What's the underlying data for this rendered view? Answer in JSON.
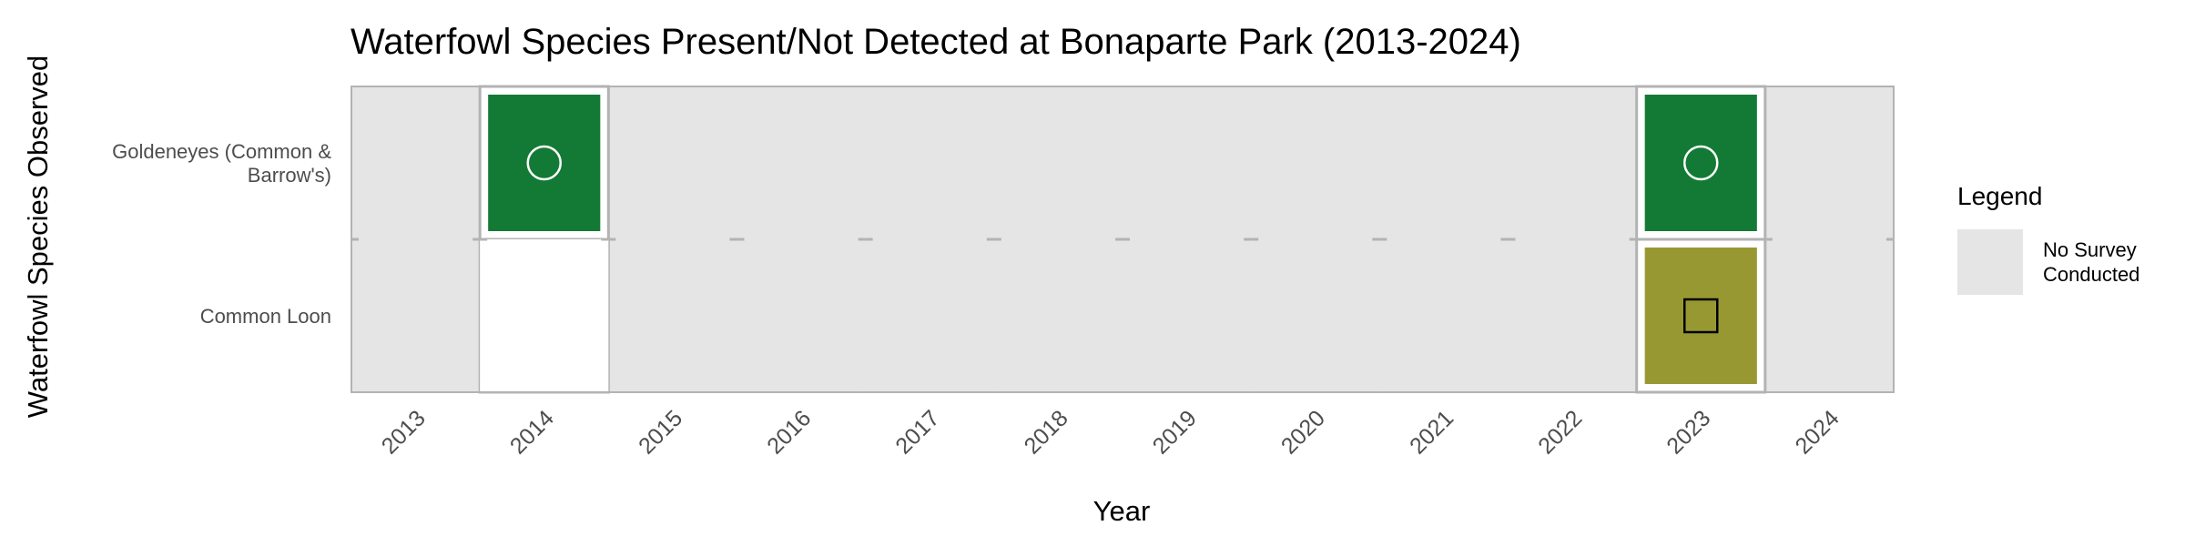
{
  "chart_data": {
    "type": "heatmap",
    "title": "Waterfowl Species Present/Not Detected at Bonaparte Park (2013-2024)",
    "xlabel": "Year",
    "ylabel": "Waterfowl Species Observed",
    "years": [
      "2013",
      "2014",
      "2015",
      "2016",
      "2017",
      "2018",
      "2019",
      "2020",
      "2021",
      "2022",
      "2023",
      "2024"
    ],
    "species": [
      {
        "label_lines": [
          "Goldeneyes (Common &",
          "Barrow's)"
        ],
        "status": [
          "no_survey",
          "present",
          "no_survey",
          "no_survey",
          "no_survey",
          "no_survey",
          "no_survey",
          "no_survey",
          "no_survey",
          "no_survey",
          "present",
          "no_survey"
        ]
      },
      {
        "label_lines": [
          "Common Loon"
        ],
        "status": [
          "no_survey",
          "not_detected",
          "no_survey",
          "no_survey",
          "no_survey",
          "no_survey",
          "no_survey",
          "no_survey",
          "no_survey",
          "no_survey",
          "present_alt",
          "no_survey"
        ]
      }
    ],
    "cell_styles": {
      "no_survey": {
        "fill": "#e5e5e5",
        "marker": "none"
      },
      "present": {
        "fill": "#137a35",
        "marker": "circle",
        "marker_color": "#ffffff"
      },
      "present_alt": {
        "fill": "#989833",
        "marker": "square",
        "marker_color": "#000000"
      },
      "not_detected": {
        "fill": "#ffffff",
        "marker": "none"
      }
    },
    "legend": {
      "title": "Legend",
      "placement": "right",
      "items": [
        {
          "label_lines": [
            "No Survey",
            "Conducted"
          ],
          "fill": "#e5e5e5"
        }
      ]
    },
    "panel_background": "#e5e5e5",
    "border_color": "#b3b3b3",
    "grid": true
  }
}
